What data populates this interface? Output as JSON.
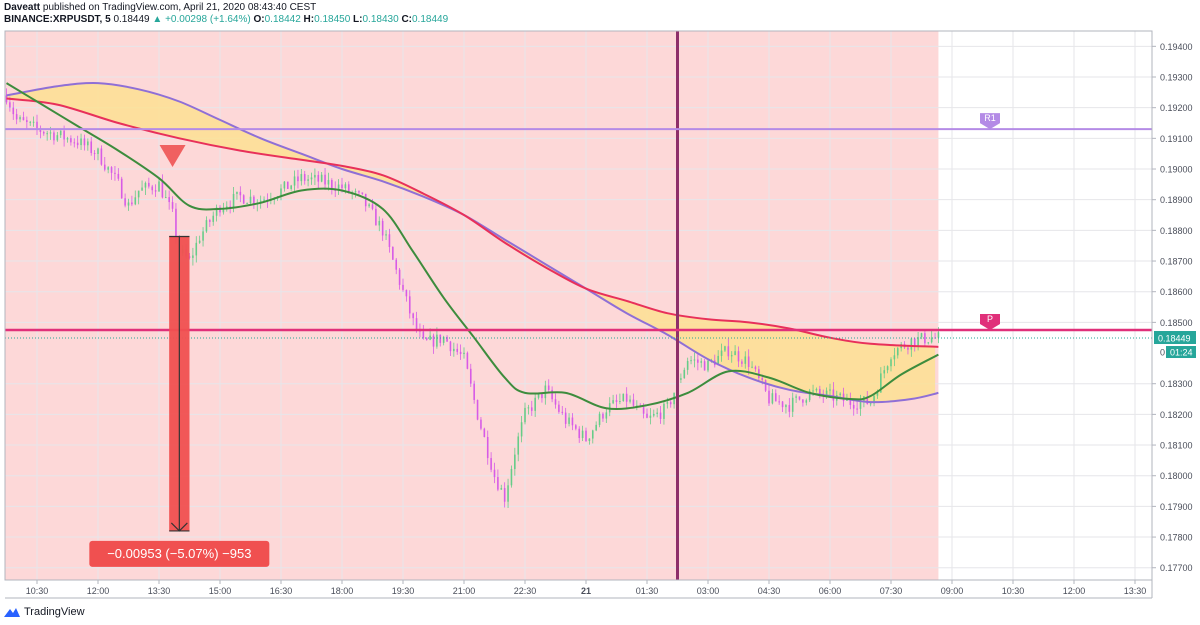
{
  "header": {
    "author": "Daveatt",
    "published_text": "published on TradingView.com, April 21, 2020 08:43:40 CEST",
    "symbol": "BINANCE:XRPUSDT, 5",
    "last": "0.18449",
    "change": "+0.00298 (+1.64%)",
    "o_label": "O:",
    "o": "0.18442",
    "h_label": "H:",
    "h": "0.18450",
    "l_label": "L:",
    "l": "0.18430",
    "c_label": "C:",
    "c": "0.18449"
  },
  "footer": {
    "brand": "TradingView"
  },
  "colors": {
    "session_bg": "#fdd8d8",
    "bull": "#66cc88",
    "bear": "#d75be6",
    "ema_fast": "#3d8c3d",
    "ema_red": "#e8305a",
    "ema_purple": "#8f6fd6",
    "cloud": "#fde093",
    "pivot": "#e0307a",
    "r1": "#b48be6",
    "measure": "#f05050",
    "session_line": "#8e2f6a"
  },
  "chart_data": {
    "type": "candlestick",
    "y_ticks": [
      "0.19400",
      "0.19300",
      "0.19200",
      "0.19100",
      "0.19000",
      "0.18900",
      "0.18800",
      "0.18700",
      "0.18600",
      "0.18500",
      "0.18300",
      "0.18200",
      "0.18100",
      "0.18000",
      "0.17900",
      "0.17800",
      "0.17700"
    ],
    "ylim": [
      0.1766,
      0.1945
    ],
    "x_ticks": [
      "10:30",
      "12:00",
      "13:30",
      "15:00",
      "16:30",
      "18:00",
      "19:30",
      "21:00",
      "22:30",
      "21",
      "01:30",
      "03:00",
      "04:30",
      "06:00",
      "07:30",
      "09:00",
      "10:30",
      "12:00",
      "13:30"
    ],
    "x_tick_times": [
      "04-20 10:30",
      "04-20 12:00",
      "04-20 13:30",
      "04-20 15:00",
      "04-20 16:30",
      "04-20 18:00",
      "04-20 19:30",
      "04-20 21:00",
      "04-20 22:30",
      "04-21 00:00",
      "04-21 01:30",
      "04-21 03:00",
      "04-21 04:30",
      "04-21 06:00",
      "04-21 07:30",
      "04-21 09:00",
      "04-21 10:30",
      "04-21 12:00",
      "04-21 13:30"
    ],
    "bold_tick": "21",
    "price_path": [
      {
        "t": "04-20 09:45",
        "p": 0.1924
      },
      {
        "t": "04-20 10:00",
        "p": 0.1916
      },
      {
        "t": "04-20 10:30",
        "p": 0.1913
      },
      {
        "t": "04-20 11:00",
        "p": 0.1911
      },
      {
        "t": "04-20 11:30",
        "p": 0.1909
      },
      {
        "t": "04-20 12:00",
        "p": 0.1905
      },
      {
        "t": "04-20 12:30",
        "p": 0.1895
      },
      {
        "t": "04-20 12:45",
        "p": 0.1888
      },
      {
        "t": "04-20 13:00",
        "p": 0.1893
      },
      {
        "t": "04-20 13:30",
        "p": 0.1895
      },
      {
        "t": "04-20 13:50",
        "p": 0.1885
      },
      {
        "t": "04-20 14:00",
        "p": 0.1873
      },
      {
        "t": "04-20 14:15",
        "p": 0.187
      },
      {
        "t": "04-20 14:30",
        "p": 0.1878
      },
      {
        "t": "04-20 15:00",
        "p": 0.1888
      },
      {
        "t": "04-20 15:30",
        "p": 0.1891
      },
      {
        "t": "04-20 16:00",
        "p": 0.189
      },
      {
        "t": "04-20 16:30",
        "p": 0.1893
      },
      {
        "t": "04-20 17:00",
        "p": 0.1897
      },
      {
        "t": "04-20 17:30",
        "p": 0.1896
      },
      {
        "t": "04-20 18:00",
        "p": 0.1894
      },
      {
        "t": "04-20 18:30",
        "p": 0.189
      },
      {
        "t": "04-20 19:00",
        "p": 0.188
      },
      {
        "t": "04-20 19:15",
        "p": 0.187
      },
      {
        "t": "04-20 19:45",
        "p": 0.185
      },
      {
        "t": "04-20 20:00",
        "p": 0.1843
      },
      {
        "t": "04-20 20:30",
        "p": 0.1845
      },
      {
        "t": "04-20 21:00",
        "p": 0.1838
      },
      {
        "t": "04-20 21:20",
        "p": 0.182
      },
      {
        "t": "04-20 21:45",
        "p": 0.18
      },
      {
        "t": "04-20 22:00",
        "p": 0.1793
      },
      {
        "t": "04-20 22:15",
        "p": 0.1808
      },
      {
        "t": "04-20 22:30",
        "p": 0.182
      },
      {
        "t": "04-20 23:00",
        "p": 0.1828
      },
      {
        "t": "04-20 23:30",
        "p": 0.1818
      },
      {
        "t": "04-21 00:00",
        "p": 0.1812
      },
      {
        "t": "04-21 00:30",
        "p": 0.1822
      },
      {
        "t": "04-21 01:00",
        "p": 0.1825
      },
      {
        "t": "04-21 01:30",
        "p": 0.1818
      },
      {
        "t": "04-21 02:00",
        "p": 0.1822
      },
      {
        "t": "04-21 02:30",
        "p": 0.1838
      },
      {
        "t": "04-21 03:00",
        "p": 0.1836
      },
      {
        "t": "04-21 03:30",
        "p": 0.1841
      },
      {
        "t": "04-21 04:00",
        "p": 0.1837
      },
      {
        "t": "04-21 04:30",
        "p": 0.1825
      },
      {
        "t": "04-21 05:00",
        "p": 0.1823
      },
      {
        "t": "04-21 05:30",
        "p": 0.1827
      },
      {
        "t": "04-21 06:00",
        "p": 0.1826
      },
      {
        "t": "04-21 06:30",
        "p": 0.1824
      },
      {
        "t": "04-21 07:00",
        "p": 0.1824
      },
      {
        "t": "04-21 07:30",
        "p": 0.184
      },
      {
        "t": "04-21 08:00",
        "p": 0.1844
      },
      {
        "t": "04-21 08:30",
        "p": 0.1845
      },
      {
        "t": "04-21 08:40",
        "p": 0.18449
      }
    ],
    "ema_fast": [
      {
        "t": "04-20 09:45",
        "p": 0.1928
      },
      {
        "t": "04-20 10:30",
        "p": 0.1922
      },
      {
        "t": "04-20 11:30",
        "p": 0.1914
      },
      {
        "t": "04-20 12:30",
        "p": 0.1906
      },
      {
        "t": "04-20 13:30",
        "p": 0.1897
      },
      {
        "t": "04-20 14:15",
        "p": 0.1888
      },
      {
        "t": "04-20 15:00",
        "p": 0.1887
      },
      {
        "t": "04-20 16:00",
        "p": 0.1889
      },
      {
        "t": "04-20 17:00",
        "p": 0.1893
      },
      {
        "t": "04-20 18:00",
        "p": 0.1893
      },
      {
        "t": "04-20 19:00",
        "p": 0.1887
      },
      {
        "t": "04-20 19:45",
        "p": 0.1873
      },
      {
        "t": "04-20 20:30",
        "p": 0.1858
      },
      {
        "t": "04-20 21:15",
        "p": 0.1845
      },
      {
        "t": "04-20 22:00",
        "p": 0.1832
      },
      {
        "t": "04-20 22:30",
        "p": 0.1827
      },
      {
        "t": "04-20 23:30",
        "p": 0.1827
      },
      {
        "t": "04-21 00:30",
        "p": 0.1822
      },
      {
        "t": "04-21 01:30",
        "p": 0.1823
      },
      {
        "t": "04-21 02:30",
        "p": 0.1827
      },
      {
        "t": "04-21 03:30",
        "p": 0.1834
      },
      {
        "t": "04-21 04:30",
        "p": 0.1832
      },
      {
        "t": "04-21 05:30",
        "p": 0.1827
      },
      {
        "t": "04-21 06:30",
        "p": 0.1825
      },
      {
        "t": "04-21 07:00",
        "p": 0.1826
      },
      {
        "t": "04-21 07:45",
        "p": 0.1833
      },
      {
        "t": "04-21 08:40",
        "p": 0.18395
      }
    ],
    "ema_red": [
      {
        "t": "04-20 09:45",
        "p": 0.1923
      },
      {
        "t": "04-20 11:00",
        "p": 0.1921
      },
      {
        "t": "04-20 12:30",
        "p": 0.1915
      },
      {
        "t": "04-20 14:00",
        "p": 0.191
      },
      {
        "t": "04-20 15:30",
        "p": 0.1906
      },
      {
        "t": "04-20 17:00",
        "p": 0.1903
      },
      {
        "t": "04-20 18:00",
        "p": 0.1901
      },
      {
        "t": "04-20 19:00",
        "p": 0.1898
      },
      {
        "t": "04-20 20:00",
        "p": 0.1892
      },
      {
        "t": "04-20 21:00",
        "p": 0.1885
      },
      {
        "t": "04-20 22:00",
        "p": 0.1876
      },
      {
        "t": "04-20 23:00",
        "p": 0.1868
      },
      {
        "t": "04-21 00:00",
        "p": 0.1861
      },
      {
        "t": "04-21 01:00",
        "p": 0.1857
      },
      {
        "t": "04-21 02:00",
        "p": 0.1853
      },
      {
        "t": "04-21 03:00",
        "p": 0.1851
      },
      {
        "t": "04-21 04:00",
        "p": 0.185
      },
      {
        "t": "04-21 05:00",
        "p": 0.1848
      },
      {
        "t": "04-21 06:00",
        "p": 0.1845
      },
      {
        "t": "04-21 07:00",
        "p": 0.1843
      },
      {
        "t": "04-21 08:40",
        "p": 0.1842
      }
    ],
    "ema_purple": [
      {
        "t": "04-20 09:45",
        "p": 0.1924
      },
      {
        "t": "04-20 11:00",
        "p": 0.1927
      },
      {
        "t": "04-20 12:00",
        "p": 0.1928
      },
      {
        "t": "04-20 13:00",
        "p": 0.1926
      },
      {
        "t": "04-20 14:00",
        "p": 0.1922
      },
      {
        "t": "04-20 15:00",
        "p": 0.1916
      },
      {
        "t": "04-20 16:00",
        "p": 0.191
      },
      {
        "t": "04-20 17:00",
        "p": 0.1905
      },
      {
        "t": "04-20 18:00",
        "p": 0.19
      },
      {
        "t": "04-20 19:00",
        "p": 0.1896
      },
      {
        "t": "04-20 20:00",
        "p": 0.1891
      },
      {
        "t": "04-20 21:00",
        "p": 0.1885
      },
      {
        "t": "04-20 22:00",
        "p": 0.1877
      },
      {
        "t": "04-20 23:00",
        "p": 0.1869
      },
      {
        "t": "04-21 00:00",
        "p": 0.1861
      },
      {
        "t": "04-21 01:00",
        "p": 0.1853
      },
      {
        "t": "04-21 02:00",
        "p": 0.1846
      },
      {
        "t": "04-21 03:00",
        "p": 0.1838
      },
      {
        "t": "04-21 04:00",
        "p": 0.1832
      },
      {
        "t": "04-21 05:00",
        "p": 0.1828
      },
      {
        "t": "04-21 06:00",
        "p": 0.1826
      },
      {
        "t": "04-21 07:00",
        "p": 0.1824
      },
      {
        "t": "04-21 08:00",
        "p": 0.1825
      },
      {
        "t": "04-21 08:40",
        "p": 0.1827
      }
    ],
    "session_lines": [
      "04-20 09:40",
      "04-21 02:15"
    ],
    "session_shading_end": "04-21 08:40",
    "levels": [
      {
        "name": "R1",
        "price": 0.1913
      },
      {
        "name": "P",
        "price": 0.18475
      }
    ],
    "signal_marker": {
      "t": "04-20 13:50",
      "price": 0.19
    },
    "measure": {
      "from_price": 0.1878,
      "to_price": 0.1782,
      "t_start": "04-20 13:45",
      "t_end": "04-20 14:15",
      "label": "−0.00953 (−5.07%) −953"
    },
    "last_price_label": "0.18449",
    "countdown_label": "01:24",
    "countdown_prefix": "0"
  }
}
